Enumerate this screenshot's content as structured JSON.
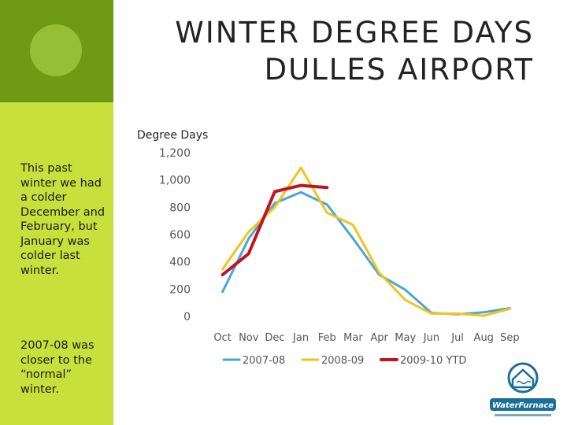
{
  "slide": {
    "title_line1": "WINTER DEGREE DAYS",
    "title_line2": "DULLES AIRPORT",
    "paragraph1": "This past winter we had a colder December and February, but January was colder last winter.",
    "paragraph2": "2007-08 was closer to the “normal” winter."
  },
  "colors": {
    "title_band": "#ffffff",
    "sidebar_dark": "#6f9a14",
    "sidebar_light": "#c8e03c",
    "logo_blue": "#1b6e9a"
  },
  "logo": {
    "brand_text": "WaterFurnace",
    "icon": "house-logo-icon"
  },
  "chart_data": {
    "type": "line",
    "title": "Degree Days",
    "categories": [
      "Oct",
      "Nov",
      "Dec",
      "Jan",
      "Feb",
      "Mar",
      "Apr",
      "May",
      "Jun",
      "Jul",
      "Aug",
      "Sep"
    ],
    "ylim": [
      0,
      1200
    ],
    "yticks": [
      0,
      200,
      400,
      600,
      800,
      1000,
      1200
    ],
    "ytick_labels": [
      "0",
      "200",
      "400",
      "600",
      "800",
      "1,000",
      "1,200"
    ],
    "grid": false,
    "legend_position": "bottom",
    "series": [
      {
        "name": "2007-08",
        "color": "#4aa6d8",
        "values": [
          180,
          570,
          830,
          910,
          820,
          570,
          305,
          195,
          25,
          15,
          30,
          60
        ]
      },
      {
        "name": "2008-09",
        "color": "#f2c31c",
        "values": [
          345,
          620,
          800,
          1090,
          760,
          670,
          320,
          120,
          20,
          20,
          5,
          55
        ]
      },
      {
        "name": "2009-10 YTD",
        "color": "#c0141e",
        "values": [
          305,
          460,
          915,
          960,
          945,
          null,
          null,
          null,
          null,
          null,
          null,
          null
        ]
      }
    ]
  }
}
